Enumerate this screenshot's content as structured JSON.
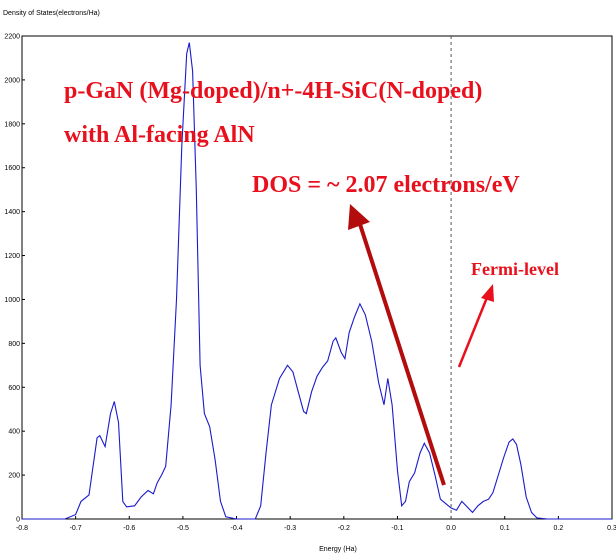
{
  "chart_data": {
    "type": "line",
    "ylabel": "Density of States(electrons/Ha)",
    "xlabel": "Energy (Ha)",
    "xlim": [
      -0.8,
      0.3
    ],
    "ylim": [
      0,
      2200
    ],
    "x_ticks": [
      -0.8,
      -0.7,
      -0.6,
      -0.5,
      -0.4,
      -0.3,
      -0.2,
      -0.1,
      0.0,
      0.1,
      0.2,
      0.3
    ],
    "x_tick_labels": [
      "-0.8",
      "-0.7",
      "-0.6",
      "-0.5",
      "-0.4",
      "-0.3",
      "-0.2",
      "-0.1",
      "0.0",
      "0.1",
      "0.2",
      "0.3"
    ],
    "y_ticks": [
      0,
      200,
      400,
      600,
      800,
      1000,
      1200,
      1400,
      1600,
      1800,
      2000,
      2200
    ],
    "y_tick_labels": [
      "0",
      "200",
      "400",
      "600",
      "800",
      "1000",
      "1200",
      "1400",
      "1600",
      "1800",
      "2000",
      "2200"
    ],
    "grid": false,
    "fermi_level_x": 0.0,
    "series": [
      {
        "color": "#1a1acd",
        "points": [
          [
            -0.8,
            0
          ],
          [
            -0.72,
            0
          ],
          [
            -0.7,
            20
          ],
          [
            -0.69,
            80
          ],
          [
            -0.675,
            110
          ],
          [
            -0.66,
            370
          ],
          [
            -0.655,
            380
          ],
          [
            -0.645,
            330
          ],
          [
            -0.635,
            480
          ],
          [
            -0.628,
            535
          ],
          [
            -0.62,
            440
          ],
          [
            -0.612,
            80
          ],
          [
            -0.605,
            55
          ],
          [
            -0.59,
            60
          ],
          [
            -0.578,
            100
          ],
          [
            -0.565,
            130
          ],
          [
            -0.555,
            115
          ],
          [
            -0.548,
            165
          ],
          [
            -0.54,
            200
          ],
          [
            -0.532,
            240
          ],
          [
            -0.522,
            520
          ],
          [
            -0.512,
            1000
          ],
          [
            -0.502,
            1700
          ],
          [
            -0.493,
            2120
          ],
          [
            -0.488,
            2170
          ],
          [
            -0.482,
            2040
          ],
          [
            -0.475,
            1500
          ],
          [
            -0.468,
            700
          ],
          [
            -0.46,
            480
          ],
          [
            -0.45,
            420
          ],
          [
            -0.44,
            270
          ],
          [
            -0.43,
            80
          ],
          [
            -0.42,
            10
          ],
          [
            -0.4,
            0
          ],
          [
            -0.365,
            0
          ],
          [
            -0.355,
            60
          ],
          [
            -0.345,
            300
          ],
          [
            -0.335,
            520
          ],
          [
            -0.32,
            640
          ],
          [
            -0.305,
            700
          ],
          [
            -0.295,
            670
          ],
          [
            -0.285,
            580
          ],
          [
            -0.275,
            490
          ],
          [
            -0.27,
            480
          ],
          [
            -0.26,
            580
          ],
          [
            -0.25,
            650
          ],
          [
            -0.24,
            690
          ],
          [
            -0.23,
            720
          ],
          [
            -0.22,
            810
          ],
          [
            -0.215,
            825
          ],
          [
            -0.205,
            760
          ],
          [
            -0.198,
            730
          ],
          [
            -0.19,
            850
          ],
          [
            -0.18,
            920
          ],
          [
            -0.17,
            980
          ],
          [
            -0.16,
            930
          ],
          [
            -0.148,
            810
          ],
          [
            -0.135,
            620
          ],
          [
            -0.125,
            520
          ],
          [
            -0.118,
            640
          ],
          [
            -0.11,
            520
          ],
          [
            -0.1,
            220
          ],
          [
            -0.092,
            60
          ],
          [
            -0.085,
            80
          ],
          [
            -0.078,
            170
          ],
          [
            -0.068,
            210
          ],
          [
            -0.058,
            300
          ],
          [
            -0.05,
            345
          ],
          [
            -0.04,
            300
          ],
          [
            -0.03,
            200
          ],
          [
            -0.02,
            90
          ],
          [
            -0.01,
            70
          ],
          [
            0.0,
            50
          ],
          [
            0.01,
            40
          ],
          [
            0.02,
            80
          ],
          [
            0.028,
            60
          ],
          [
            0.04,
            30
          ],
          [
            0.05,
            60
          ],
          [
            0.06,
            80
          ],
          [
            0.07,
            90
          ],
          [
            0.078,
            120
          ],
          [
            0.088,
            200
          ],
          [
            0.098,
            280
          ],
          [
            0.108,
            350
          ],
          [
            0.115,
            365
          ],
          [
            0.122,
            340
          ],
          [
            0.13,
            250
          ],
          [
            0.14,
            100
          ],
          [
            0.15,
            30
          ],
          [
            0.16,
            5
          ],
          [
            0.18,
            0
          ],
          [
            0.3,
            0
          ]
        ]
      }
    ],
    "annotations": [
      {
        "text": "p-GaN (Mg-doped)/n+-4H-SiC(N-doped)"
      },
      {
        "text": "with Al-facing AlN"
      },
      {
        "text": "DOS = ~ 2.07 electrons/eV"
      },
      {
        "text": "Fermi-level"
      }
    ],
    "colors": {
      "curve": "#1a1acd",
      "annotation": "#e8101c",
      "arrow": "#b30c0c",
      "fermi_line": "#555555"
    }
  }
}
